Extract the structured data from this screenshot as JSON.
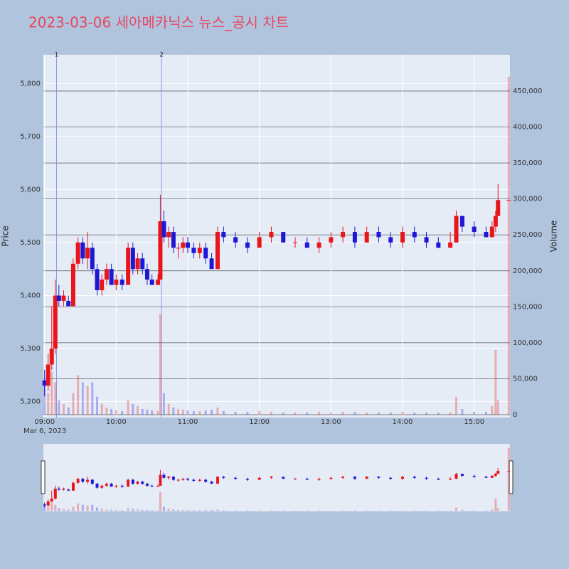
{
  "chart_data": {
    "type": "candlestick",
    "title": "2023-03-06 세아메카닉스 뉴스_공시 차트",
    "ylabel": "Price",
    "y2label": "Volume",
    "x_date_label": "Mar 6, 2023",
    "up_color": "#e8161b",
    "down_color": "#1d17d6",
    "x": [
      "09:00",
      "09:03",
      "09:06",
      "09:09",
      "09:12",
      "09:16",
      "09:20",
      "09:24",
      "09:28",
      "09:32",
      "09:36",
      "09:40",
      "09:44",
      "09:48",
      "09:52",
      "09:56",
      "10:00",
      "10:05",
      "10:10",
      "10:14",
      "10:18",
      "10:22",
      "10:26",
      "10:30",
      "10:35",
      "10:37",
      "10:40",
      "10:44",
      "10:48",
      "10:52",
      "10:56",
      "11:00",
      "11:05",
      "11:10",
      "11:15",
      "11:20",
      "11:25",
      "11:30",
      "11:40",
      "11:50",
      "12:00",
      "12:10",
      "12:20",
      "12:30",
      "12:40",
      "12:50",
      "13:00",
      "13:10",
      "13:20",
      "13:30",
      "13:40",
      "13:50",
      "14:00",
      "14:10",
      "14:20",
      "14:30",
      "14:40",
      "14:45",
      "14:50",
      "15:00",
      "15:10",
      "15:15",
      "15:18",
      "15:20",
      "15:29"
    ],
    "open": [
      5240,
      5230,
      5270,
      5300,
      5400,
      5390,
      5390,
      5380,
      5460,
      5500,
      5470,
      5490,
      5450,
      5410,
      5430,
      5450,
      5420,
      5430,
      5420,
      5490,
      5450,
      5470,
      5450,
      5430,
      5420,
      5430,
      5540,
      5510,
      5520,
      5490,
      5490,
      5500,
      5490,
      5480,
      5490,
      5470,
      5450,
      5520,
      5510,
      5500,
      5490,
      5510,
      5520,
      5500,
      5500,
      5490,
      5500,
      5510,
      5520,
      5500,
      5520,
      5510,
      5500,
      5520,
      5510,
      5500,
      5490,
      5500,
      5550,
      5530,
      5520,
      5510,
      5530,
      5550,
      5580
    ],
    "high": [
      5260,
      5290,
      5380,
      5430,
      5420,
      5410,
      5400,
      5470,
      5510,
      5510,
      5520,
      5500,
      5460,
      5440,
      5460,
      5460,
      5440,
      5440,
      5500,
      5500,
      5480,
      5480,
      5460,
      5440,
      5440,
      5590,
      5560,
      5530,
      5530,
      5500,
      5510,
      5510,
      5500,
      5500,
      5500,
      5480,
      5530,
      5530,
      5520,
      5510,
      5520,
      5530,
      5520,
      5510,
      5510,
      5510,
      5520,
      5530,
      5530,
      5530,
      5530,
      5520,
      5530,
      5530,
      5520,
      5510,
      5520,
      5560,
      5550,
      5540,
      5530,
      5540,
      5560,
      5610,
      5580
    ],
    "low": [
      5210,
      5220,
      5260,
      5290,
      5380,
      5380,
      5380,
      5380,
      5450,
      5460,
      5450,
      5440,
      5400,
      5400,
      5420,
      5420,
      5410,
      5410,
      5420,
      5440,
      5440,
      5440,
      5420,
      5420,
      5420,
      5430,
      5500,
      5490,
      5480,
      5470,
      5480,
      5480,
      5470,
      5470,
      5460,
      5450,
      5450,
      5500,
      5490,
      5480,
      5490,
      5500,
      5500,
      5490,
      5490,
      5480,
      5490,
      5500,
      5490,
      5500,
      5500,
      5490,
      5490,
      5500,
      5490,
      5490,
      5490,
      5500,
      5520,
      5510,
      5510,
      5510,
      5520,
      5550,
      5580
    ],
    "close": [
      5230,
      5270,
      5300,
      5400,
      5390,
      5400,
      5380,
      5460,
      5500,
      5470,
      5490,
      5450,
      5410,
      5430,
      5450,
      5420,
      5430,
      5420,
      5490,
      5450,
      5470,
      5450,
      5430,
      5420,
      5430,
      5540,
      5510,
      5520,
      5490,
      5490,
      5500,
      5490,
      5480,
      5490,
      5470,
      5450,
      5520,
      5510,
      5500,
      5490,
      5510,
      5520,
      5500,
      5500,
      5490,
      5500,
      5510,
      5520,
      5500,
      5520,
      5510,
      5500,
      5520,
      5510,
      5500,
      5490,
      5500,
      5550,
      5530,
      5520,
      5510,
      5530,
      5550,
      5580,
      5580
    ],
    "volume": [
      40000,
      30000,
      60000,
      45000,
      20000,
      15000,
      10000,
      30000,
      55000,
      45000,
      40000,
      45000,
      25000,
      15000,
      10000,
      8000,
      6000,
      5000,
      20000,
      15000,
      12000,
      8000,
      7000,
      6000,
      5000,
      140000,
      30000,
      15000,
      10000,
      8000,
      7000,
      6000,
      5000,
      5000,
      6000,
      7000,
      10000,
      5000,
      4000,
      4000,
      5000,
      4000,
      3000,
      3000,
      3000,
      4000,
      3000,
      4000,
      4000,
      3000,
      3000,
      3000,
      4000,
      3000,
      3000,
      3000,
      3000,
      25000,
      8000,
      4000,
      4000,
      12000,
      90000,
      20000,
      470000
    ],
    "annotations": [
      {
        "x": "09:10",
        "label": "1"
      },
      {
        "x": "10:38",
        "label": "2"
      }
    ],
    "xlim": [
      "08:59",
      "15:30"
    ],
    "xticks": [
      "09:00",
      "10:00",
      "11:00",
      "12:00",
      "13:00",
      "14:00",
      "15:00"
    ],
    "ylim": [
      5170,
      5854
    ],
    "yticks": [
      {
        "value": 5200,
        "label": "5,200"
      },
      {
        "value": 5300,
        "label": "5,300"
      },
      {
        "value": 5400,
        "label": "5,400"
      },
      {
        "value": 5500,
        "label": "5,500"
      },
      {
        "value": 5600,
        "label": "5,600"
      },
      {
        "value": 5700,
        "label": "5,700"
      },
      {
        "value": 5800,
        "label": "5,800"
      }
    ],
    "y2lim": [
      -3956,
      500440
    ],
    "y2ticks": [
      0,
      {
        "value": 50000,
        "label": "50,000"
      },
      {
        "value": 100000,
        "label": "100,000"
      },
      {
        "value": 150000,
        "label": "150,000"
      },
      {
        "value": 200000,
        "label": "200,000"
      },
      {
        "value": 250000,
        "label": "250,000"
      },
      {
        "value": 300000,
        "label": "300,000"
      },
      {
        "value": 350000,
        "label": "350,000"
      },
      {
        "value": 400000,
        "label": "400,000"
      },
      {
        "value": 450000,
        "label": "450,000"
      }
    ]
  }
}
